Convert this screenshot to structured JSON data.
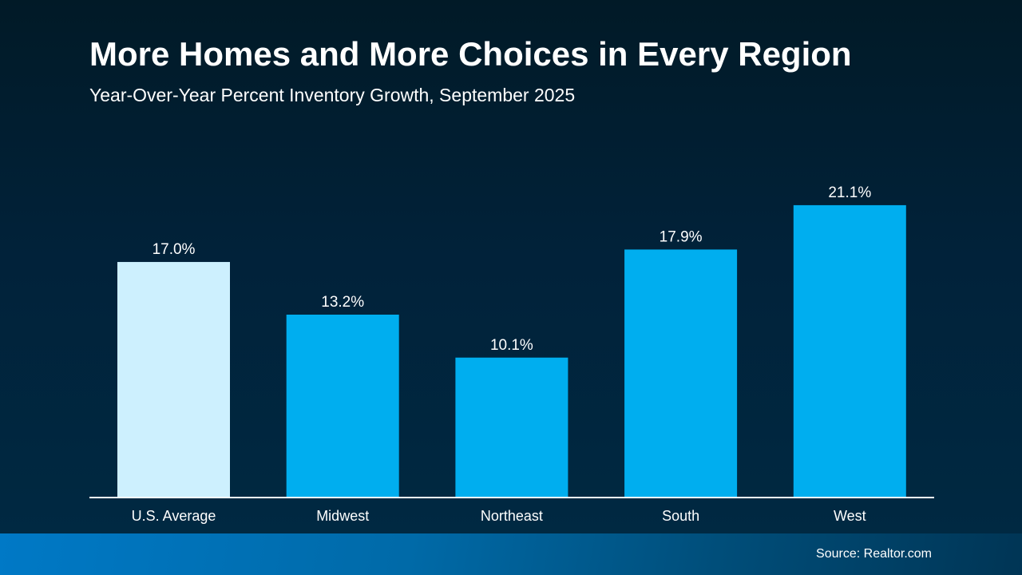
{
  "chart_data": {
    "type": "bar",
    "title": "More Homes and More Choices in Every Region",
    "subtitle": "Year-Over-Year Percent Inventory Growth, September 2025",
    "categories": [
      "U.S. Average",
      "Midwest",
      "Northeast",
      "South",
      "West"
    ],
    "values": [
      17.0,
      13.2,
      10.1,
      17.9,
      21.1
    ],
    "data_labels": [
      "17.0%",
      "13.2%",
      "10.1%",
      "17.9%",
      "21.1%"
    ],
    "colors": [
      "#cdf0fe",
      "#00aeef",
      "#00aeef",
      "#00aeef",
      "#00aeef"
    ],
    "xlabel": "",
    "ylabel": "",
    "ylim": [
      0,
      25
    ],
    "grid": false
  },
  "footer": {
    "source": "Source: Realtor.com"
  }
}
